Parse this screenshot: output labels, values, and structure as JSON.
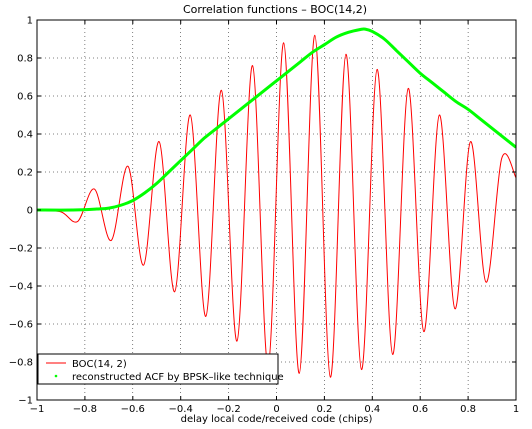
{
  "chart_data": {
    "type": "line",
    "title": "Correlation functions – BOC(14,2)",
    "xlabel": "delay local code/received code (chips)",
    "ylabel": "",
    "xlim": [
      -1,
      1
    ],
    "ylim": [
      -1,
      1
    ],
    "xticks": [
      -1,
      -0.8,
      -0.6,
      -0.4,
      -0.2,
      0,
      0.2,
      0.4,
      0.6,
      0.8,
      1
    ],
    "xtick_labels": [
      "−1",
      "−0.8",
      "−0.6",
      "−0.4",
      "−0.2",
      "0",
      "0.2",
      "0.4",
      "0.6",
      "0.8",
      "1"
    ],
    "yticks": [
      -1,
      -0.8,
      -0.6,
      -0.4,
      -0.2,
      0,
      0.2,
      0.4,
      0.6,
      0.8,
      1
    ],
    "ytick_labels": [
      "−1",
      "−0.8",
      "−0.6",
      "−0.4",
      "−0.2",
      "0",
      "0.2",
      "0.4",
      "0.6",
      "0.8",
      "1"
    ],
    "grid": true,
    "legend_position": "bottom-left",
    "series": [
      {
        "name": "BOC(14, 2)",
        "color": "#ff0000",
        "style": "line",
        "x": [
          -1.0,
          -0.9,
          -0.83,
          -0.76,
          -0.69,
          -0.62,
          -0.555,
          -0.49,
          -0.425,
          -0.36,
          -0.295,
          -0.23,
          -0.165,
          -0.1,
          -0.035,
          0.03,
          0.095,
          0.16,
          0.225,
          0.29,
          0.355,
          0.42,
          0.485,
          0.55,
          0.615,
          0.68,
          0.745,
          0.81,
          0.875,
          0.94,
          1.0
        ],
        "y": [
          0.0,
          -0.01,
          -0.06,
          0.11,
          -0.16,
          0.23,
          -0.29,
          0.36,
          -0.43,
          0.5,
          -0.56,
          0.63,
          -0.69,
          0.76,
          -0.82,
          0.88,
          -0.86,
          0.92,
          -0.88,
          0.82,
          -0.84,
          0.74,
          -0.76,
          0.64,
          -0.64,
          0.5,
          -0.52,
          0.36,
          -0.38,
          0.27,
          0.17
        ]
      },
      {
        "name": "reconstructed ACF by BPSK–like technique",
        "color": "#00ff00",
        "style": "dots",
        "x": [
          -1.0,
          -0.85,
          -0.75,
          -0.7,
          -0.65,
          -0.6,
          -0.55,
          -0.5,
          -0.45,
          -0.4,
          -0.35,
          -0.3,
          -0.25,
          -0.2,
          -0.15,
          -0.1,
          -0.05,
          0.0,
          0.05,
          0.1,
          0.15,
          0.2,
          0.25,
          0.3,
          0.35,
          0.37,
          0.4,
          0.45,
          0.5,
          0.55,
          0.6,
          0.65,
          0.7,
          0.75,
          0.8,
          0.85,
          0.9,
          0.95,
          1.0
        ],
        "y": [
          0.0,
          0.0,
          0.005,
          0.01,
          0.025,
          0.05,
          0.09,
          0.14,
          0.2,
          0.26,
          0.32,
          0.38,
          0.43,
          0.48,
          0.53,
          0.58,
          0.63,
          0.68,
          0.73,
          0.78,
          0.83,
          0.87,
          0.91,
          0.935,
          0.95,
          0.952,
          0.94,
          0.9,
          0.84,
          0.78,
          0.72,
          0.67,
          0.62,
          0.57,
          0.53,
          0.48,
          0.43,
          0.38,
          0.33
        ]
      }
    ]
  }
}
